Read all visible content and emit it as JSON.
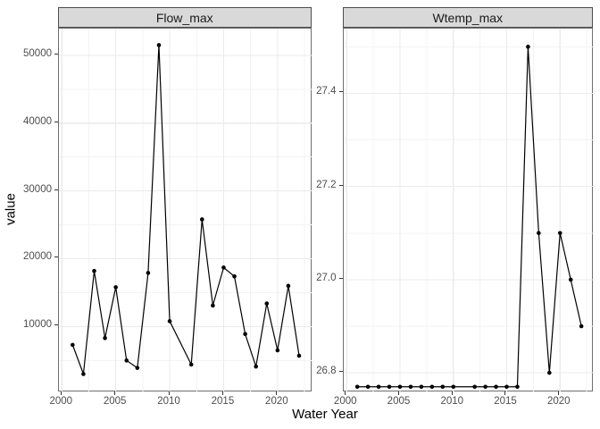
{
  "figure": {
    "y_axis_title": "value",
    "x_axis_title": "Water Year",
    "colors": {
      "strip_fill": "#D9D9D9",
      "strip_border": "#4D4D4D",
      "panel_border": "#6E6E6E",
      "grid_major": "#EBEBEB",
      "grid_minor": "#F3F3F3",
      "tick_text": "#4D4D4D",
      "series": "#000000"
    }
  },
  "chart_data": [
    {
      "type": "line",
      "title": "Flow_max",
      "xlabel": "Water Year",
      "ylabel": "value",
      "legend": "none",
      "grid": true,
      "marker": "point",
      "x": [
        2001,
        2002,
        2003,
        2004,
        2005,
        2006,
        2007,
        2008,
        2009,
        2010,
        2012,
        2013,
        2014,
        2015,
        2016,
        2017,
        2018,
        2019,
        2020,
        2021,
        2022
      ],
      "values": [
        7300,
        3000,
        18200,
        8300,
        15800,
        5000,
        3900,
        17900,
        51500,
        10800,
        4400,
        25800,
        13100,
        18700,
        17400,
        8900,
        4100,
        13400,
        6500,
        16000,
        5700
      ],
      "note_missing_years": [
        2011
      ],
      "xlim": [
        1999.73,
        2023.2
      ],
      "ylim": [
        300,
        53930
      ],
      "x_tick_values": [
        2000,
        2005,
        2010,
        2015,
        2020
      ],
      "x_tick_labels": [
        "2000",
        "2005",
        "2010",
        "2015",
        "2020"
      ],
      "x_minor_ticks": [
        2002.5,
        2007.5,
        2012.5,
        2017.5,
        2022.5
      ],
      "y_tick_values": [
        10000,
        20000,
        30000,
        40000,
        50000
      ],
      "y_tick_labels": [
        "10000",
        "20000",
        "30000",
        "40000",
        "50000"
      ],
      "y_minor_ticks": [
        5000,
        15000,
        25000,
        35000,
        45000
      ]
    },
    {
      "type": "line",
      "title": "Wtemp_max",
      "xlabel": "Water Year",
      "ylabel": "value",
      "legend": "none",
      "grid": true,
      "marker": "point",
      "x": [
        2001,
        2002,
        2003,
        2004,
        2005,
        2006,
        2007,
        2008,
        2009,
        2010,
        2012,
        2013,
        2014,
        2015,
        2016,
        2017,
        2018,
        2019,
        2020,
        2021,
        2022
      ],
      "values": [
        26.77,
        26.77,
        26.77,
        26.77,
        26.77,
        26.77,
        26.77,
        26.77,
        26.77,
        26.77,
        26.77,
        26.77,
        26.77,
        26.77,
        26.77,
        27.5,
        27.1,
        26.8,
        27.1,
        27.0,
        26.9
      ],
      "note_missing_years": [
        2011
      ],
      "xlim": [
        1999.73,
        2023.2
      ],
      "ylim": [
        26.758,
        27.539
      ],
      "x_tick_values": [
        2000,
        2005,
        2010,
        2015,
        2020
      ],
      "x_tick_labels": [
        "2000",
        "2005",
        "2010",
        "2015",
        "2020"
      ],
      "x_minor_ticks": [
        2002.5,
        2007.5,
        2012.5,
        2017.5,
        2022.5
      ],
      "y_tick_values": [
        26.8,
        27.0,
        27.2,
        27.4
      ],
      "y_tick_labels": [
        "26.8",
        "27.0",
        "27.2",
        "27.4"
      ],
      "y_minor_ticks": [
        26.9,
        27.1,
        27.3,
        27.5
      ]
    }
  ]
}
